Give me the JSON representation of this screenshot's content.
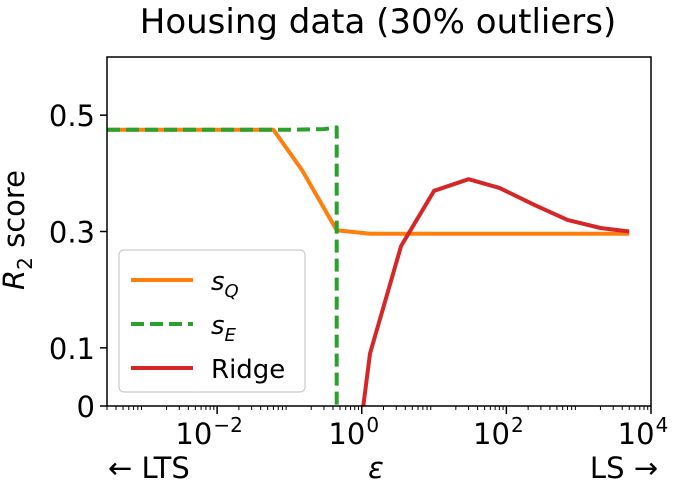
{
  "chart_data": {
    "type": "line",
    "title": "Housing data (30% outliers)",
    "ylabel": "R",
    "ylabel_sub": "2",
    "ylabel_rest": " score",
    "xlabel": "ε",
    "x_left_note": "← LTS",
    "x_right_note": "LS →",
    "xscale": "log",
    "xlim": [
      0.0003,
      10000
    ],
    "ylim": [
      0,
      0.6
    ],
    "yticks": [
      {
        "value": 0,
        "label": "0"
      },
      {
        "value": 0.1,
        "label": "0.1"
      },
      {
        "value": 0.3,
        "label": "0.3"
      },
      {
        "value": 0.5,
        "label": "0.5"
      }
    ],
    "xticks": [
      {
        "value": 0.01,
        "base": "10",
        "exp": "−2"
      },
      {
        "value": 1,
        "base": "10",
        "exp": "0"
      },
      {
        "value": 100,
        "base": "10",
        "exp": "2"
      },
      {
        "value": 10000,
        "base": "10",
        "exp": "4"
      }
    ],
    "grid": false,
    "legend_position": "bottom-left",
    "series": [
      {
        "name": "s",
        "name_sub": "Q",
        "color": "#ff7f0e",
        "dash": "solid",
        "x": [
          0.0003,
          0.001,
          0.004,
          0.02,
          0.06,
          0.15,
          0.45,
          1.3,
          4,
          12,
          40,
          150,
          500,
          2000,
          5000
        ],
        "y": [
          0.475,
          0.475,
          0.475,
          0.475,
          0.475,
          0.405,
          0.302,
          0.296,
          0.296,
          0.296,
          0.296,
          0.296,
          0.296,
          0.296,
          0.296
        ]
      },
      {
        "name": "s",
        "name_sub": "E",
        "color": "#2ca02c",
        "dash": "dashed",
        "x": [
          0.0003,
          0.001,
          0.01,
          0.1,
          0.3,
          0.45,
          0.45
        ],
        "y": [
          0.475,
          0.475,
          0.475,
          0.475,
          0.476,
          0.479,
          0
        ]
      },
      {
        "name": "Ridge",
        "color": "#d62728",
        "dash": "solid",
        "x": [
          1.05,
          1.3,
          3.5,
          10,
          30,
          80,
          250,
          700,
          2000,
          5000
        ],
        "y": [
          0,
          0.09,
          0.275,
          0.37,
          0.39,
          0.375,
          0.345,
          0.32,
          0.306,
          0.3
        ]
      }
    ]
  }
}
